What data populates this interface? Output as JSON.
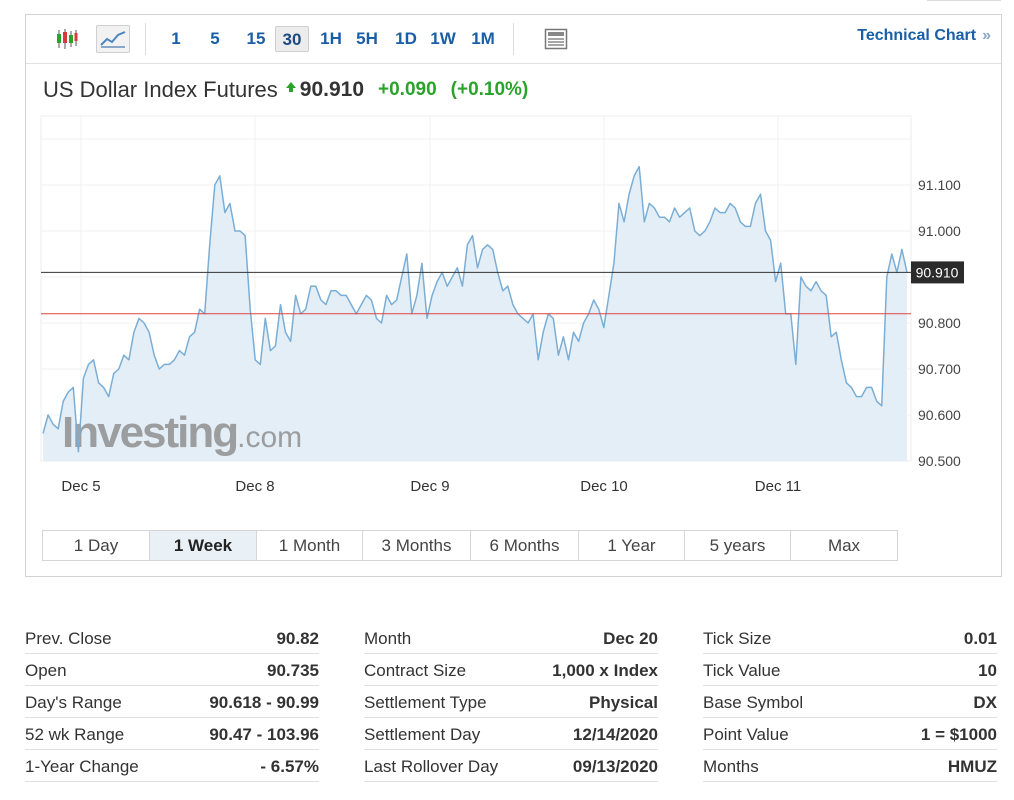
{
  "toolbar": {
    "candle_icon": "candlestick-chart-icon",
    "line_icon": "line-chart-icon",
    "news_icon": "news-icon",
    "periods": [
      {
        "label": "1",
        "active": false
      },
      {
        "label": "5",
        "active": false
      },
      {
        "label": "15",
        "active": false
      },
      {
        "label": "30",
        "active": true
      },
      {
        "label": "1H",
        "active": false
      },
      {
        "label": "5H",
        "active": false
      },
      {
        "label": "1D",
        "active": false
      },
      {
        "label": "1W",
        "active": false
      },
      {
        "label": "1M",
        "active": false
      }
    ],
    "technical_chart": "Technical Chart",
    "technical_chart_arrow": "»"
  },
  "quote": {
    "name": "US Dollar Index Futures",
    "price": "90.910",
    "change": "+0.090",
    "change_pct": "(+0.10%)",
    "up_color": "#2ba32b"
  },
  "chart_data": {
    "type": "area",
    "x_tick_labels": [
      "Dec 5",
      "Dec 8",
      "Dec 9",
      "Dec 10",
      "Dec 11"
    ],
    "y_tick_labels": [
      "91.100",
      "91.000",
      "90.800",
      "90.700",
      "90.600",
      "90.500"
    ],
    "ylim": [
      90.5,
      91.25
    ],
    "last_price": 90.91,
    "last_price_label": "90.910",
    "prev_close": 90.82,
    "watermark": "Investing.com",
    "line_color": "#7aaed6",
    "fill_color": "#e4eef6",
    "series": [
      {
        "values": [
          90.56,
          90.6,
          90.58,
          90.57,
          90.63,
          90.65,
          90.66,
          90.52,
          90.68,
          90.71,
          90.72,
          90.67,
          90.66,
          90.64,
          90.69,
          90.7,
          90.73,
          90.72,
          90.78,
          90.81,
          90.8,
          90.78,
          90.73,
          90.7,
          90.71,
          90.71,
          90.72,
          90.74,
          90.73,
          90.77,
          90.78,
          90.83,
          90.82,
          90.97,
          91.1,
          91.12,
          91.04,
          91.06,
          91.0,
          91.0,
          90.99,
          90.83,
          90.72,
          90.71,
          90.81,
          90.74,
          90.75,
          90.84,
          90.78,
          90.76,
          90.86,
          90.82,
          90.83,
          90.88,
          90.88,
          90.85,
          90.84,
          90.87,
          90.87,
          90.86,
          90.86,
          90.84,
          90.82,
          90.84,
          90.86,
          90.85,
          90.81,
          90.8,
          90.86,
          90.84,
          90.85,
          90.9,
          90.95,
          90.82,
          90.86,
          90.93,
          90.81,
          90.86,
          90.89,
          90.91,
          90.88,
          90.9,
          90.92,
          90.88,
          90.97,
          90.99,
          90.92,
          90.96,
          90.97,
          90.96,
          90.91,
          90.87,
          90.88,
          90.84,
          90.82,
          90.81,
          90.8,
          90.82,
          90.72,
          90.78,
          90.82,
          90.81,
          90.73,
          90.77,
          90.72,
          90.78,
          90.76,
          90.8,
          90.82,
          90.85,
          90.83,
          90.79,
          90.86,
          90.93,
          91.06,
          91.02,
          91.08,
          91.12,
          91.14,
          91.02,
          91.06,
          91.05,
          91.03,
          91.03,
          91.02,
          91.05,
          91.03,
          91.04,
          91.05,
          91.0,
          90.99,
          91.0,
          91.02,
          91.05,
          91.04,
          91.04,
          91.06,
          91.05,
          91.02,
          91.01,
          91.01,
          91.06,
          91.08,
          91.0,
          90.98,
          90.89,
          90.93,
          90.82,
          90.82,
          90.71,
          90.9,
          90.88,
          90.87,
          90.89,
          90.87,
          90.86,
          90.77,
          90.78,
          90.72,
          90.67,
          90.66,
          90.64,
          90.64,
          90.66,
          90.66,
          90.63,
          90.62,
          90.9,
          90.95,
          90.91,
          90.96,
          90.91
        ]
      }
    ]
  },
  "ranges": [
    {
      "label": "1 Day",
      "active": false
    },
    {
      "label": "1 Week",
      "active": true
    },
    {
      "label": "1 Month",
      "active": false
    },
    {
      "label": "3 Months",
      "active": false
    },
    {
      "label": "6 Months",
      "active": false
    },
    {
      "label": "1 Year",
      "active": false
    },
    {
      "label": "5 years",
      "active": false
    },
    {
      "label": "Max",
      "active": false
    }
  ],
  "stats": [
    [
      {
        "label": "Prev. Close",
        "value": "90.82"
      },
      {
        "label": "Open",
        "value": "90.735"
      },
      {
        "label": "Day's Range",
        "value": "90.618 - 90.99"
      },
      {
        "label": "52 wk Range",
        "value": "90.47 - 103.96"
      },
      {
        "label": "1-Year Change",
        "value": "- 6.57%"
      }
    ],
    [
      {
        "label": "Month",
        "value": "Dec 20"
      },
      {
        "label": "Contract Size",
        "value": "1,000 x Index"
      },
      {
        "label": "Settlement Type",
        "value": "Physical"
      },
      {
        "label": "Settlement Day",
        "value": "12/14/2020"
      },
      {
        "label": "Last Rollover Day",
        "value": "09/13/2020"
      }
    ],
    [
      {
        "label": "Tick Size",
        "value": "0.01"
      },
      {
        "label": "Tick Value",
        "value": "10"
      },
      {
        "label": "Base Symbol",
        "value": "DX"
      },
      {
        "label": "Point Value",
        "value": "1 = $1000"
      },
      {
        "label": "Months",
        "value": "HMUZ"
      }
    ]
  ]
}
